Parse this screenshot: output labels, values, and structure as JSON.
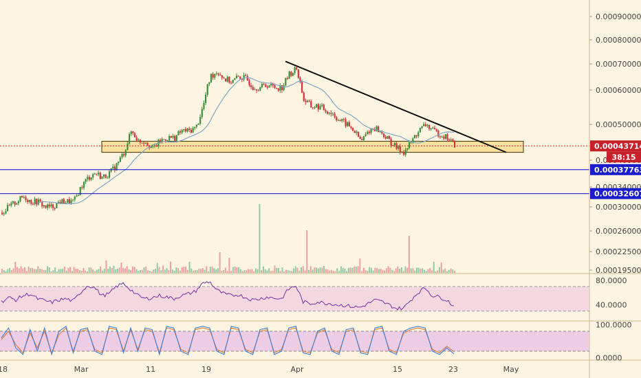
{
  "chart_data": {
    "type": "candlestick",
    "title": "",
    "colors": {
      "background": "#fdf5e1",
      "up": "#3a8f3a",
      "down": "#d3333a",
      "ma": "#7ea6c9",
      "trendline": "#111111",
      "zone_fill": "#f8d98a",
      "zone_border": "#3a3000",
      "support_line": "#1c1ccf",
      "price_line": "#c8202a",
      "rsi_line": "#7a2ea8",
      "rsi_band": "#f0cce0",
      "stoch_k": "#3f7ed6",
      "stoch_d": "#e07a30",
      "stoch_band": "#e8c2e6"
    },
    "x_axis": {
      "tick_labels": [
        "18",
        "Mar",
        "11",
        "19",
        "Apr",
        "15",
        "23",
        "May"
      ]
    },
    "price_axis": {
      "tick_labels": [
        "0.00090000",
        "0.00080000",
        "0.00070000",
        "0.00060000",
        "0.00050000",
        "0.00040000",
        "0.00034000",
        "0.00030000",
        "0.00026000",
        "0.00022500",
        "0.00019500"
      ]
    },
    "price_panel": {
      "current_price": "0.00043714",
      "countdown": "38:15",
      "support_levels": [
        {
          "value": 0.00037763,
          "label": "0.00037763"
        },
        {
          "value": 0.00032607,
          "label": "0.00032607"
        }
      ],
      "resistance_zone": {
        "low": 0.00042,
        "high": 0.00045
      },
      "trendline": {
        "from": 0.00071,
        "to": 0.00042
      },
      "close_path": [
        0.00029,
        0.0003,
        0.00031,
        0.00032,
        0.00031,
        0.00031,
        0.0003,
        0.0003,
        0.00031,
        0.00031,
        0.00031,
        0.00034,
        0.00036,
        0.00037,
        0.00036,
        0.00037,
        0.00039,
        0.00042,
        0.00048,
        0.00045,
        0.00045,
        0.00043,
        0.00045,
        0.00046,
        0.00046,
        0.00048,
        0.00048,
        0.00049,
        0.00055,
        0.00065,
        0.00067,
        0.00064,
        0.00063,
        0.00065,
        0.00064,
        0.00061,
        0.00061,
        0.00062,
        0.00061,
        0.00061,
        0.00066,
        0.00068,
        0.00057,
        0.00055,
        0.00055,
        0.00054,
        0.00053,
        0.00051,
        0.0005,
        0.00048,
        0.00045,
        0.00048,
        0.00049,
        0.00047,
        0.00045,
        0.00043,
        0.00042,
        0.00045,
        0.00048,
        0.0005,
        0.00048,
        0.00047,
        0.00046,
        0.00044
      ]
    },
    "rsi_panel": {
      "tick_labels": [
        "80.0000",
        "40.0000"
      ],
      "band": [
        30,
        70
      ],
      "values": [
        45,
        52,
        48,
        55,
        58,
        50,
        47,
        44,
        48,
        50,
        46,
        60,
        72,
        68,
        55,
        58,
        70,
        75,
        65,
        55,
        50,
        52,
        55,
        53,
        50,
        55,
        58,
        62,
        75,
        78,
        64,
        58,
        55,
        57,
        52,
        48,
        50,
        53,
        51,
        50,
        66,
        71,
        45,
        42,
        45,
        43,
        42,
        40,
        39,
        37,
        36,
        42,
        48,
        45,
        40,
        34,
        35,
        48,
        60,
        68,
        55,
        53,
        48,
        38
      ]
    },
    "stoch_panel": {
      "tick_labels": [
        "100.0000",
        "0.0000"
      ],
      "band": [
        20,
        80
      ],
      "k_values": [
        60,
        90,
        30,
        10,
        85,
        20,
        90,
        10,
        80,
        95,
        15,
        85,
        90,
        20,
        10,
        95,
        90,
        15,
        90,
        20,
        90,
        85,
        10,
        95,
        90,
        20,
        10,
        90,
        95,
        90,
        20,
        10,
        95,
        90,
        20,
        10,
        85,
        90,
        10,
        20,
        90,
        95,
        15,
        10,
        80,
        90,
        20,
        10,
        85,
        90,
        15,
        10,
        90,
        95,
        20,
        10,
        80,
        90,
        95,
        90,
        20,
        10,
        30,
        12
      ],
      "d_values": [
        55,
        80,
        40,
        15,
        75,
        30,
        80,
        15,
        70,
        90,
        20,
        80,
        85,
        25,
        15,
        90,
        85,
        20,
        85,
        25,
        85,
        80,
        15,
        90,
        85,
        25,
        15,
        85,
        90,
        85,
        25,
        15,
        90,
        85,
        25,
        15,
        80,
        85,
        15,
        25,
        85,
        90,
        20,
        15,
        75,
        85,
        25,
        15,
        80,
        85,
        20,
        15,
        85,
        90,
        25,
        15,
        75,
        85,
        90,
        85,
        25,
        15,
        35,
        18
      ]
    }
  }
}
